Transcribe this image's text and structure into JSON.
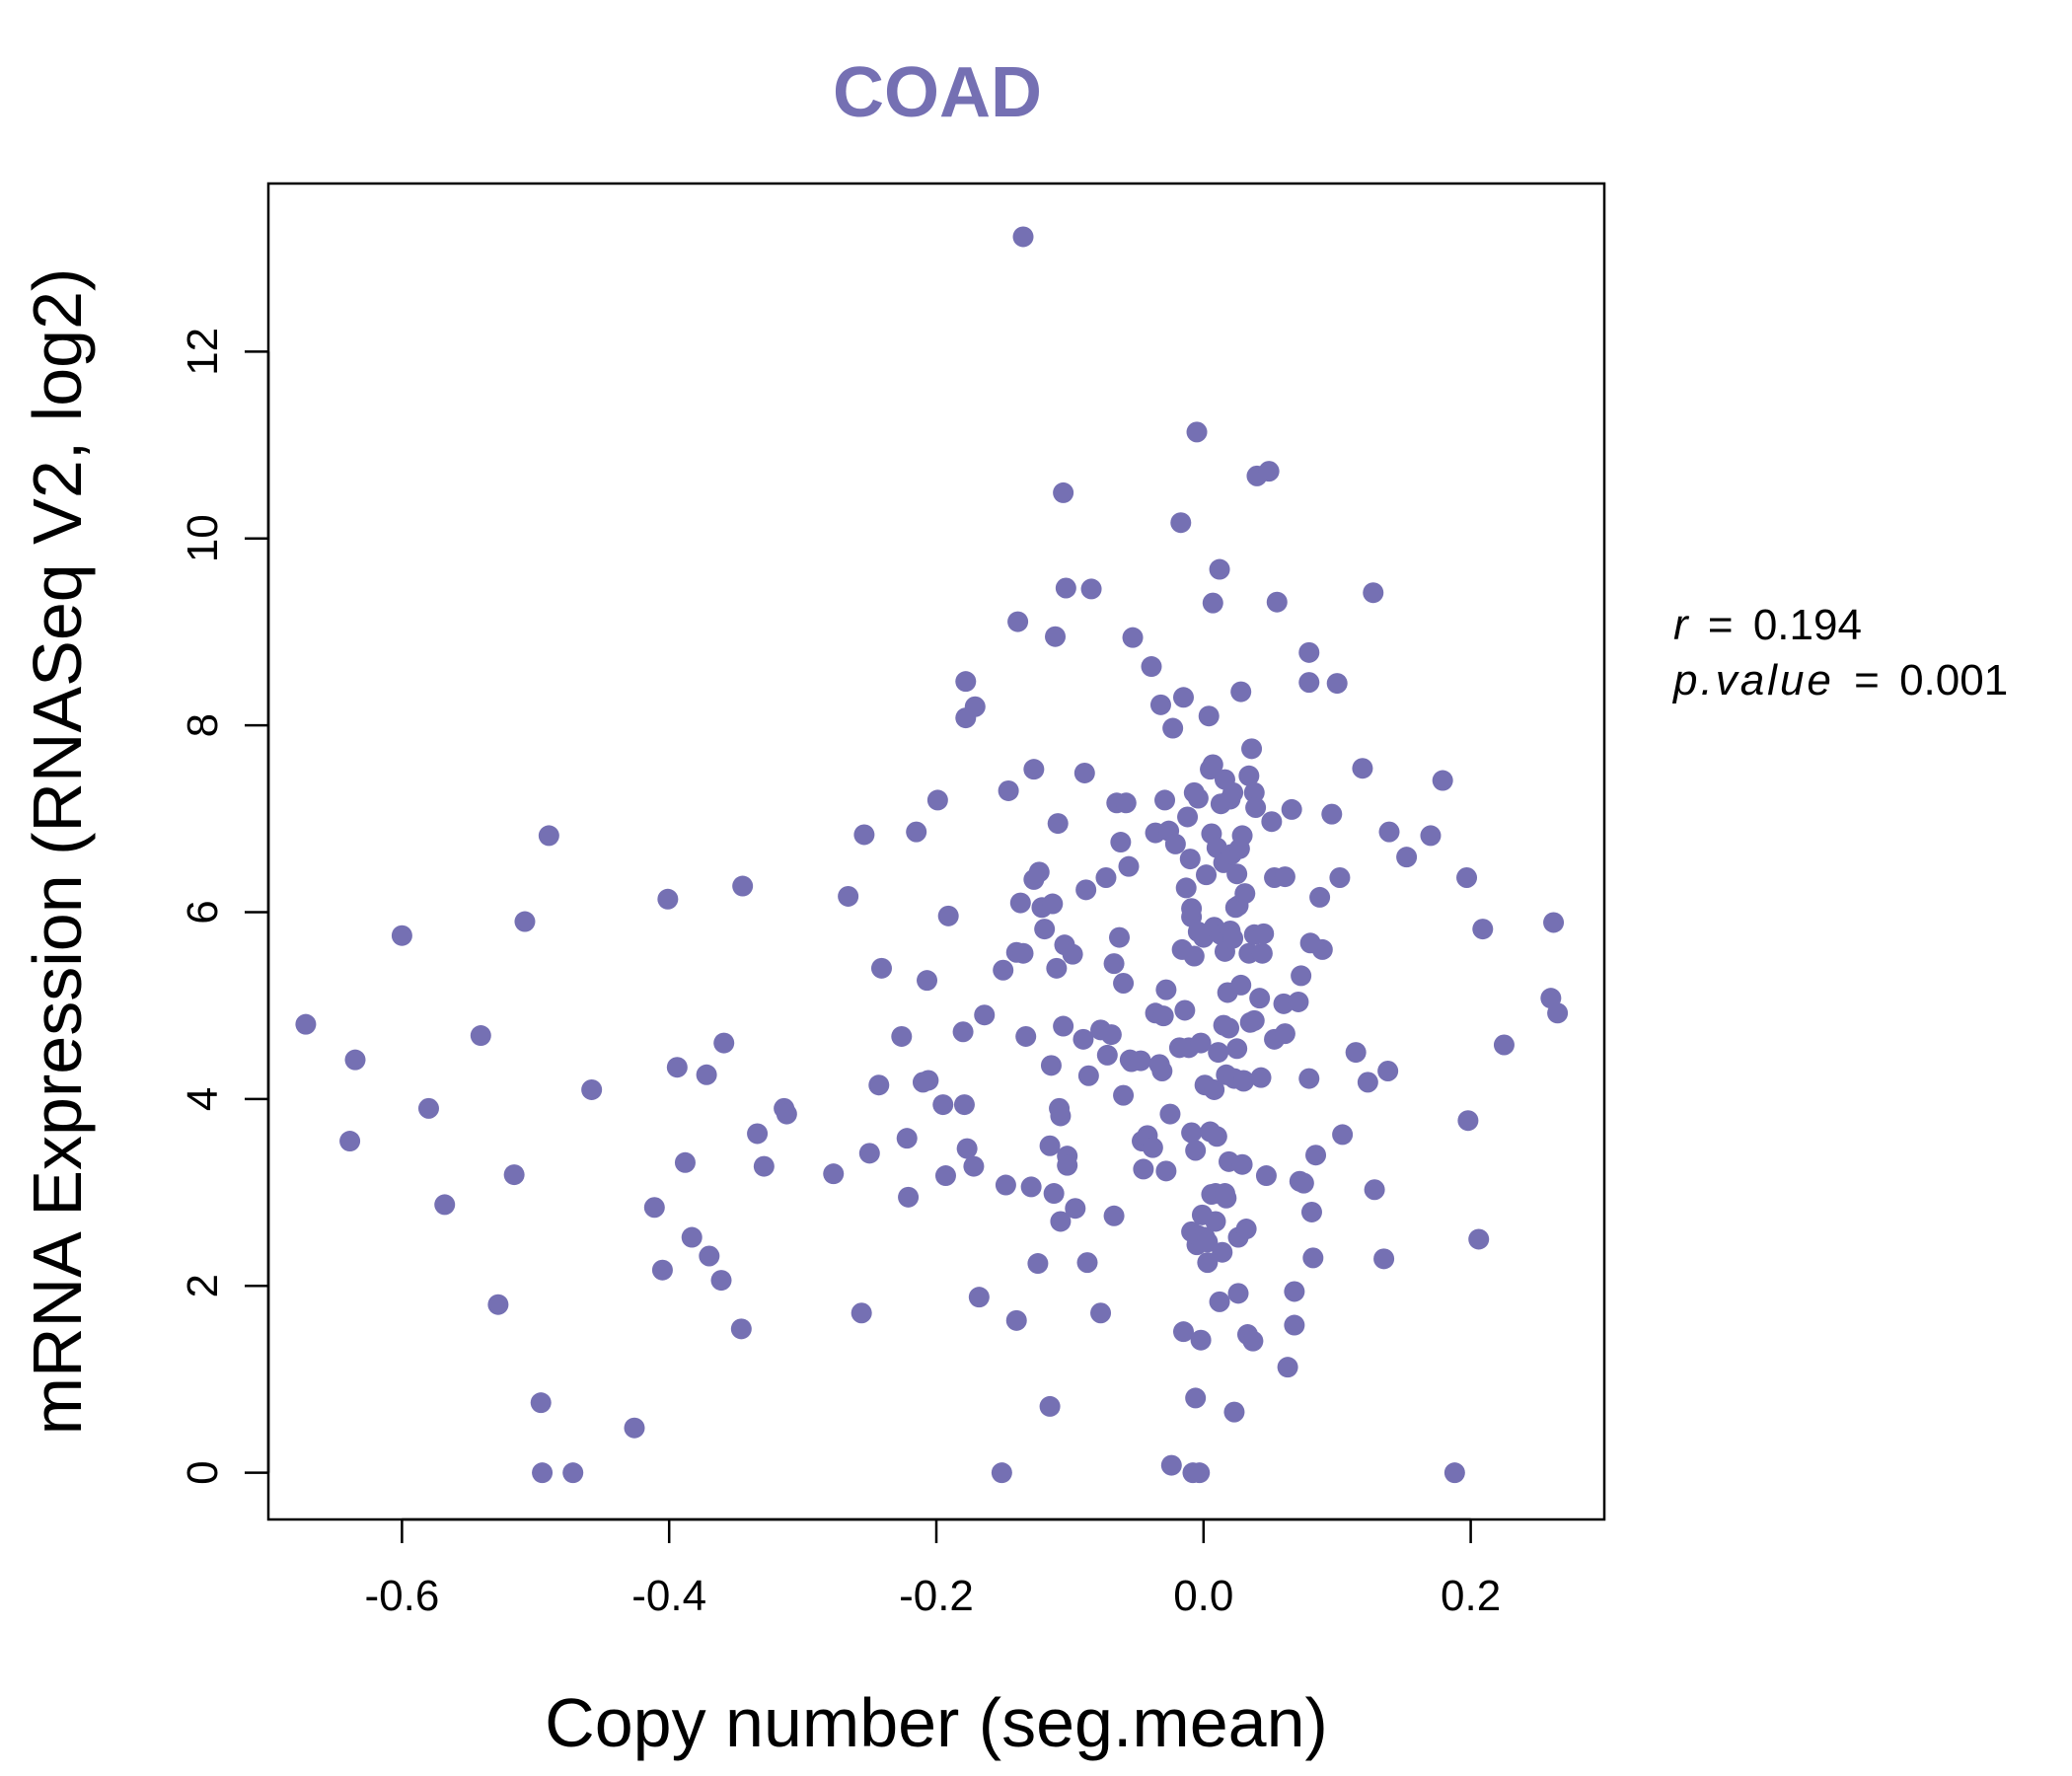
{
  "chart_data": {
    "type": "scatter",
    "title": "COAD",
    "xlabel": "Copy number (seg.mean)",
    "ylabel": "mRNA Expression (RNASeq V2, log2)",
    "xlim": [
      -0.7,
      0.3
    ],
    "ylim": [
      -0.5,
      13.8
    ],
    "x_ticks": [
      -0.6,
      -0.4,
      -0.2,
      0.0,
      0.2
    ],
    "x_tick_labels": [
      "-0.6",
      "-0.4",
      "-0.2",
      "0.0",
      "0.2"
    ],
    "y_ticks": [
      0,
      2,
      4,
      6,
      8,
      10,
      12
    ],
    "y_tick_labels": [
      "0",
      "2",
      "4",
      "6",
      "8",
      "10",
      "12"
    ],
    "point_color": "#7570B3",
    "annotations": {
      "r_label": "r",
      "r_value": "0.194",
      "p_label": "p.value",
      "p_value": "0.001",
      "equals": "="
    },
    "points": [
      [
        -0.672,
        4.8
      ],
      [
        -0.635,
        4.42
      ],
      [
        -0.639,
        3.55
      ],
      [
        -0.6,
        5.75
      ],
      [
        -0.58,
        3.9
      ],
      [
        -0.568,
        2.87
      ],
      [
        -0.541,
        4.68
      ],
      [
        -0.528,
        1.8
      ],
      [
        -0.516,
        3.19
      ],
      [
        -0.508,
        5.9
      ],
      [
        -0.49,
        6.82
      ],
      [
        -0.496,
        0.75
      ],
      [
        -0.495,
        0.0
      ],
      [
        -0.472,
        0.0
      ],
      [
        -0.458,
        4.1
      ],
      [
        -0.426,
        0.48
      ],
      [
        -0.411,
        2.84
      ],
      [
        -0.405,
        2.17
      ],
      [
        -0.401,
        6.14
      ],
      [
        -0.394,
        4.34
      ],
      [
        -0.388,
        3.32
      ],
      [
        -0.383,
        2.52
      ],
      [
        -0.372,
        4.26
      ],
      [
        -0.37,
        2.32
      ],
      [
        -0.361,
        2.06
      ],
      [
        -0.359,
        4.6
      ],
      [
        -0.346,
        1.54
      ],
      [
        -0.345,
        6.28
      ],
      [
        -0.334,
        3.63
      ],
      [
        -0.329,
        3.28
      ],
      [
        -0.314,
        3.9
      ],
      [
        -0.312,
        3.84
      ],
      [
        -0.277,
        3.2
      ],
      [
        -0.266,
        6.17
      ],
      [
        -0.256,
        1.71
      ],
      [
        -0.254,
        6.83
      ],
      [
        -0.25,
        3.42
      ],
      [
        -0.243,
        4.15
      ],
      [
        -0.241,
        5.4
      ],
      [
        -0.226,
        4.67
      ],
      [
        -0.222,
        3.58
      ],
      [
        -0.221,
        2.95
      ],
      [
        -0.215,
        6.86
      ],
      [
        -0.21,
        4.18
      ],
      [
        -0.206,
        4.2
      ],
      [
        -0.207,
        5.27
      ],
      [
        -0.199,
        7.2
      ],
      [
        -0.195,
        3.94
      ],
      [
        -0.193,
        3.18
      ],
      [
        -0.191,
        5.96
      ],
      [
        -0.18,
        4.72
      ],
      [
        -0.179,
        3.94
      ],
      [
        -0.178,
        8.08
      ],
      [
        -0.178,
        8.47
      ],
      [
        -0.177,
        3.47
      ],
      [
        -0.172,
        3.28
      ],
      [
        -0.171,
        8.2
      ],
      [
        -0.168,
        1.88
      ],
      [
        -0.164,
        4.9
      ],
      [
        -0.151,
        0.0
      ],
      [
        -0.15,
        5.38
      ],
      [
        -0.148,
        3.08
      ],
      [
        -0.146,
        7.3
      ],
      [
        -0.14,
        1.63
      ],
      [
        -0.14,
        5.57
      ],
      [
        -0.139,
        9.11
      ],
      [
        -0.137,
        6.1
      ],
      [
        -0.135,
        13.23
      ],
      [
        -0.135,
        5.56
      ],
      [
        -0.133,
        4.67
      ],
      [
        -0.129,
        3.06
      ],
      [
        -0.127,
        7.53
      ],
      [
        -0.127,
        6.35
      ],
      [
        -0.124,
        2.24
      ],
      [
        -0.123,
        6.43
      ],
      [
        -0.121,
        6.05
      ],
      [
        -0.119,
        5.82
      ],
      [
        -0.115,
        0.71
      ],
      [
        -0.115,
        3.5
      ],
      [
        -0.114,
        4.36
      ],
      [
        -0.113,
        6.09
      ],
      [
        -0.112,
        2.99
      ],
      [
        -0.111,
        8.95
      ],
      [
        -0.11,
        5.4
      ],
      [
        -0.109,
        6.95
      ],
      [
        -0.108,
        3.9
      ],
      [
        -0.107,
        3.82
      ],
      [
        -0.107,
        2.69
      ],
      [
        -0.105,
        10.49
      ],
      [
        -0.105,
        4.78
      ],
      [
        -0.104,
        5.65
      ],
      [
        -0.103,
        9.47
      ],
      [
        -0.102,
        3.39
      ],
      [
        -0.102,
        3.29
      ],
      [
        -0.098,
        5.55
      ],
      [
        -0.096,
        2.83
      ],
      [
        -0.09,
        4.64
      ],
      [
        -0.089,
        7.49
      ],
      [
        -0.088,
        6.24
      ],
      [
        -0.087,
        2.25
      ],
      [
        -0.086,
        4.25
      ],
      [
        -0.084,
        9.46
      ],
      [
        -0.077,
        1.71
      ],
      [
        -0.077,
        4.74
      ],
      [
        -0.073,
        6.37
      ],
      [
        -0.072,
        4.47
      ],
      [
        -0.069,
        4.69
      ],
      [
        -0.067,
        2.75
      ],
      [
        -0.067,
        5.45
      ],
      [
        -0.065,
        7.17
      ],
      [
        -0.063,
        5.73
      ],
      [
        -0.062,
        6.75
      ],
      [
        -0.06,
        5.24
      ],
      [
        -0.06,
        4.04
      ],
      [
        -0.058,
        7.17
      ],
      [
        -0.056,
        6.49
      ],
      [
        -0.055,
        4.42
      ],
      [
        -0.054,
        4.4
      ],
      [
        -0.053,
        8.94
      ],
      [
        -0.047,
        4.41
      ],
      [
        -0.046,
        3.55
      ],
      [
        -0.045,
        3.25
      ],
      [
        -0.042,
        3.61
      ],
      [
        -0.039,
        8.63
      ],
      [
        -0.038,
        3.48
      ],
      [
        -0.036,
        4.92
      ],
      [
        -0.036,
        6.85
      ],
      [
        -0.033,
        4.37
      ],
      [
        -0.032,
        8.22
      ],
      [
        -0.031,
        4.3
      ],
      [
        -0.03,
        4.89
      ],
      [
        -0.029,
        7.2
      ],
      [
        -0.028,
        5.17
      ],
      [
        -0.028,
        3.23
      ],
      [
        -0.026,
        6.87
      ],
      [
        -0.025,
        3.84
      ],
      [
        -0.024,
        0.08
      ],
      [
        -0.023,
        7.97
      ],
      [
        -0.021,
        6.73
      ],
      [
        -0.018,
        4.55
      ],
      [
        -0.017,
        10.17
      ],
      [
        -0.016,
        5.6
      ],
      [
        -0.015,
        1.51
      ],
      [
        -0.015,
        8.3
      ],
      [
        -0.014,
        4.95
      ],
      [
        -0.013,
        6.26
      ],
      [
        -0.012,
        7.02
      ],
      [
        -0.011,
        4.55
      ],
      [
        -0.01,
        6.57
      ],
      [
        -0.009,
        5.95
      ],
      [
        -0.009,
        6.04
      ],
      [
        -0.009,
        3.64
      ],
      [
        -0.009,
        2.58
      ],
      [
        -0.008,
        0.0
      ],
      [
        -0.007,
        7.28
      ],
      [
        -0.007,
        5.53
      ],
      [
        -0.006,
        3.45
      ],
      [
        -0.006,
        0.8
      ],
      [
        -0.005,
        11.14
      ],
      [
        -0.005,
        2.44
      ],
      [
        -0.004,
        5.79
      ],
      [
        -0.004,
        2.54
      ],
      [
        -0.004,
        7.22
      ],
      [
        -0.003,
        0.0
      ],
      [
        -0.002,
        1.42
      ],
      [
        -0.002,
        4.6
      ],
      [
        -0.001,
        2.76
      ],
      [
        0.0,
        5.73
      ],
      [
        0.001,
        2.52
      ],
      [
        0.001,
        4.15
      ],
      [
        0.002,
        6.4
      ],
      [
        0.003,
        2.25
      ],
      [
        0.003,
        2.47
      ],
      [
        0.004,
        8.1
      ],
      [
        0.005,
        7.53
      ],
      [
        0.005,
        3.65
      ],
      [
        0.006,
        6.84
      ],
      [
        0.006,
        2.98
      ],
      [
        0.007,
        9.31
      ],
      [
        0.007,
        7.58
      ],
      [
        0.008,
        5.84
      ],
      [
        0.008,
        4.1
      ],
      [
        0.009,
        2.69
      ],
      [
        0.009,
        2.99
      ],
      [
        0.01,
        6.69
      ],
      [
        0.01,
        3.6
      ],
      [
        0.011,
        4.5
      ],
      [
        0.012,
        9.67
      ],
      [
        0.012,
        1.83
      ],
      [
        0.013,
        7.16
      ],
      [
        0.013,
        5.76
      ],
      [
        0.014,
        2.36
      ],
      [
        0.015,
        6.53
      ],
      [
        0.015,
        4.79
      ],
      [
        0.016,
        7.42
      ],
      [
        0.016,
        5.58
      ],
      [
        0.016,
        2.99
      ],
      [
        0.017,
        4.26
      ],
      [
        0.017,
        2.94
      ],
      [
        0.018,
        5.14
      ],
      [
        0.019,
        4.76
      ],
      [
        0.019,
        3.33
      ],
      [
        0.02,
        7.21
      ],
      [
        0.02,
        5.8
      ],
      [
        0.021,
        6.62
      ],
      [
        0.022,
        7.28
      ],
      [
        0.022,
        5.72
      ],
      [
        0.023,
        4.22
      ],
      [
        0.023,
        0.65
      ],
      [
        0.024,
        6.05
      ],
      [
        0.025,
        6.41
      ],
      [
        0.025,
        4.54
      ],
      [
        0.026,
        2.52
      ],
      [
        0.026,
        1.92
      ],
      [
        0.026,
        6.07
      ],
      [
        0.027,
        6.68
      ],
      [
        0.028,
        5.22
      ],
      [
        0.028,
        8.36
      ],
      [
        0.029,
        6.82
      ],
      [
        0.029,
        3.3
      ],
      [
        0.03,
        4.2
      ],
      [
        0.03,
        4.19
      ],
      [
        0.031,
        6.2
      ],
      [
        0.032,
        2.61
      ],
      [
        0.033,
        1.48
      ],
      [
        0.034,
        5.56
      ],
      [
        0.034,
        7.46
      ],
      [
        0.035,
        4.82
      ],
      [
        0.036,
        7.75
      ],
      [
        0.037,
        1.41
      ],
      [
        0.038,
        7.28
      ],
      [
        0.038,
        5.76
      ],
      [
        0.038,
        4.84
      ],
      [
        0.039,
        7.12
      ],
      [
        0.04,
        10.67
      ],
      [
        0.042,
        5.08
      ],
      [
        0.043,
        4.23
      ],
      [
        0.044,
        5.56
      ],
      [
        0.045,
        5.77
      ],
      [
        0.047,
        3.18
      ],
      [
        0.049,
        10.72
      ],
      [
        0.051,
        6.97
      ],
      [
        0.053,
        6.37
      ],
      [
        0.053,
        4.64
      ],
      [
        0.055,
        9.32
      ],
      [
        0.06,
        5.02
      ],
      [
        0.061,
        6.38
      ],
      [
        0.061,
        4.7
      ],
      [
        0.063,
        1.13
      ],
      [
        0.066,
        7.1
      ],
      [
        0.068,
        1.94
      ],
      [
        0.068,
        1.58
      ],
      [
        0.071,
        5.04
      ],
      [
        0.072,
        3.12
      ],
      [
        0.073,
        5.32
      ],
      [
        0.075,
        3.1
      ],
      [
        0.079,
        8.78
      ],
      [
        0.079,
        8.46
      ],
      [
        0.079,
        4.22
      ],
      [
        0.08,
        5.67
      ],
      [
        0.081,
        2.79
      ],
      [
        0.082,
        2.3
      ],
      [
        0.084,
        3.4
      ],
      [
        0.087,
        6.16
      ],
      [
        0.089,
        5.6
      ],
      [
        0.096,
        7.05
      ],
      [
        0.1,
        8.45
      ],
      [
        0.102,
        6.37
      ],
      [
        0.104,
        3.62
      ],
      [
        0.114,
        4.5
      ],
      [
        0.119,
        7.54
      ],
      [
        0.123,
        4.18
      ],
      [
        0.127,
        9.42
      ],
      [
        0.128,
        3.03
      ],
      [
        0.135,
        2.29
      ],
      [
        0.138,
        4.3
      ],
      [
        0.139,
        6.86
      ],
      [
        0.152,
        6.59
      ],
      [
        0.17,
        6.82
      ],
      [
        0.179,
        7.41
      ],
      [
        0.188,
        0.0
      ],
      [
        0.197,
        6.37
      ],
      [
        0.198,
        3.77
      ],
      [
        0.206,
        2.5
      ],
      [
        0.209,
        5.82
      ],
      [
        0.225,
        4.58
      ],
      [
        0.26,
        5.08
      ],
      [
        0.262,
        5.89
      ],
      [
        0.265,
        4.92
      ]
    ]
  }
}
